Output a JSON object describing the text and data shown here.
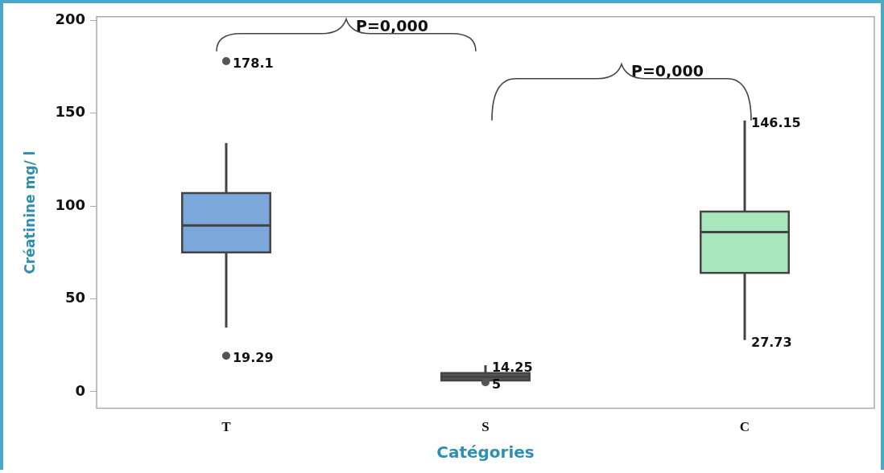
{
  "chart_data": {
    "type": "box",
    "xlabel": "Catégories",
    "ylabel": "Créatinine mg/ l",
    "categories": [
      "T",
      "S",
      "C"
    ],
    "colors": [
      "#7ba7db",
      "#555555",
      "#a8e6bc"
    ],
    "boxes": [
      {
        "low": 34.5,
        "q1": 75,
        "median": 89.5,
        "q3": 107,
        "high": 134,
        "outliers": [
          178.1,
          19.29
        ]
      },
      {
        "low": 6,
        "q1": 6,
        "median": 8,
        "q3": 10,
        "high": 14.25,
        "outliers": [
          5
        ]
      },
      {
        "low": 27.73,
        "q1": 64,
        "median": 86,
        "q3": 97,
        "high": 146.15
      }
    ],
    "ylim": [
      -9,
      202
    ],
    "yticks": [
      0,
      50,
      100,
      150,
      200
    ],
    "grid": false,
    "legend": false,
    "annotations": [
      "178.1",
      "19.29",
      {
        "text": "14.25",
        "x": "S",
        "y": 14.25
      },
      {
        "text": "5",
        "x": "S",
        "y": 5
      },
      {
        "text": "146.15",
        "x": "C",
        "y": 146.15
      },
      {
        "text": "27.73",
        "x": "C",
        "y": 27.73
      },
      "P=0,000",
      "P=0,000"
    ]
  }
}
